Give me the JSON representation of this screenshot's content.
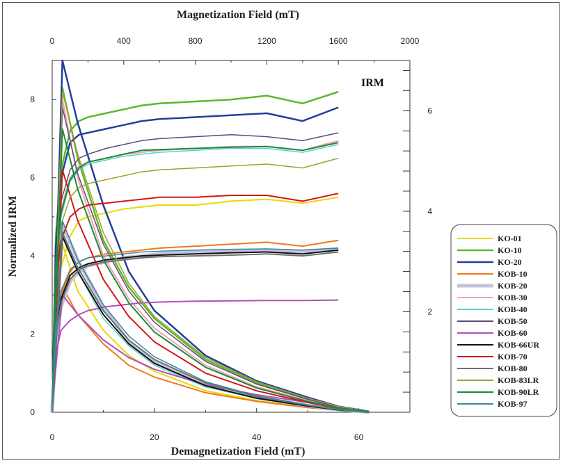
{
  "chart_data": {
    "type": "line",
    "title": "",
    "annotation": "IRM",
    "top_axis": {
      "label": "Magnetization Field (mT)",
      "range": [
        0,
        2000
      ],
      "ticks": [
        "0",
        "400",
        "800",
        "1200",
        "1600",
        "2000"
      ]
    },
    "bottom_axis": {
      "label": "Demagnetization Field (mT)",
      "range": [
        0,
        70
      ],
      "ticks": [
        "0",
        "20",
        "40",
        "60"
      ]
    },
    "left_axis": {
      "label": "Normalized IRM",
      "range": [
        0,
        9
      ],
      "ticks": [
        "0",
        "2",
        "4",
        "6",
        "8"
      ]
    },
    "right_axis": {
      "range": [
        0,
        7
      ],
      "ticks": [
        "2",
        "4",
        "6"
      ]
    },
    "legend_position": "bottom-right",
    "acquisition_x": [
      0,
      20,
      50,
      100,
      150,
      200,
      300,
      400,
      500,
      600,
      800,
      1000,
      1200,
      1400,
      1600
    ],
    "demag_x": [
      0,
      2,
      5,
      10,
      15,
      20,
      30,
      40,
      50,
      56,
      62
    ],
    "series": [
      {
        "name": "KO-01",
        "color": "#e8d800",
        "width": 2,
        "acq": [
          0,
          2.5,
          3.7,
          4.5,
          4.9,
          5.0,
          5.1,
          5.2,
          5.25,
          5.3,
          5.3,
          5.4,
          5.45,
          5.35,
          5.5
        ],
        "demag": [
          0.1,
          4.3,
          3.1,
          2.1,
          1.45,
          1.05,
          0.55,
          0.3,
          0.12,
          0.05,
          0.0
        ]
      },
      {
        "name": "KO-10",
        "color": "#5cb82a",
        "width": 2.5,
        "acq": [
          0,
          4.5,
          6.2,
          7.2,
          7.45,
          7.55,
          7.65,
          7.75,
          7.85,
          7.9,
          7.95,
          8.0,
          8.1,
          7.9,
          8.2
        ],
        "demag": [
          0.2,
          8.3,
          6.5,
          4.4,
          3.2,
          2.4,
          1.35,
          0.75,
          0.35,
          0.15,
          0.02
        ]
      },
      {
        "name": "KO-20",
        "color": "#22409a",
        "width": 2.5,
        "acq": [
          0,
          4.2,
          6.0,
          6.9,
          7.1,
          7.15,
          7.25,
          7.35,
          7.45,
          7.5,
          7.55,
          7.6,
          7.65,
          7.45,
          7.8
        ],
        "demag": [
          0.2,
          9.0,
          7.4,
          5.3,
          3.6,
          2.6,
          1.45,
          0.8,
          0.38,
          0.15,
          0.02
        ]
      },
      {
        "name": "KOB-10",
        "color": "#f07818",
        "width": 2,
        "acq": [
          0,
          2.1,
          3.0,
          3.6,
          3.85,
          3.95,
          4.05,
          4.1,
          4.15,
          4.2,
          4.25,
          4.3,
          4.35,
          4.25,
          4.4
        ],
        "demag": [
          0.1,
          3.2,
          2.5,
          1.75,
          1.2,
          0.9,
          0.5,
          0.28,
          0.12,
          0.05,
          0.0
        ]
      },
      {
        "name": "KOB-20",
        "color": "#c4c2dc",
        "width": 5,
        "acq": [
          0,
          1.8,
          2.7,
          3.35,
          3.6,
          3.75,
          3.85,
          3.95,
          4.0,
          4.05,
          4.1,
          4.12,
          4.15,
          4.12,
          4.18
        ],
        "demag": [
          0.1,
          4.8,
          3.9,
          2.7,
          1.8,
          1.3,
          0.7,
          0.38,
          0.17,
          0.07,
          0.0
        ]
      },
      {
        "name": "KOB-30",
        "color": "#f4a0b4",
        "width": 2,
        "acq": [
          0,
          3.8,
          5.2,
          6.0,
          6.3,
          6.4,
          6.5,
          6.6,
          6.65,
          6.7,
          6.75,
          6.8,
          6.8,
          6.7,
          6.95
        ],
        "demag": [
          0.2,
          8.0,
          6.0,
          4.0,
          2.9,
          2.15,
          1.2,
          0.65,
          0.3,
          0.12,
          0.02
        ]
      },
      {
        "name": "KOB-40",
        "color": "#5cd0d0",
        "width": 1.5,
        "acq": [
          0,
          3.6,
          5.0,
          5.9,
          6.2,
          6.35,
          6.45,
          6.55,
          6.6,
          6.65,
          6.7,
          6.75,
          6.75,
          6.65,
          6.85
        ],
        "demag": [
          0.2,
          4.6,
          3.6,
          2.4,
          1.7,
          1.2,
          0.65,
          0.35,
          0.15,
          0.06,
          0.0
        ]
      },
      {
        "name": "KOB-50",
        "color": "#604878",
        "width": 1.5,
        "acq": [
          0,
          3.9,
          5.4,
          6.2,
          6.5,
          6.6,
          6.75,
          6.85,
          6.95,
          7.0,
          7.05,
          7.1,
          7.05,
          6.95,
          7.15
        ],
        "demag": [
          0.2,
          7.8,
          6.1,
          4.3,
          3.1,
          2.3,
          1.3,
          0.72,
          0.33,
          0.13,
          0.02
        ]
      },
      {
        "name": "KOB-60",
        "color": "#b050b8",
        "width": 2,
        "acq": [
          0,
          1.5,
          2.1,
          2.35,
          2.5,
          2.6,
          2.7,
          2.75,
          2.8,
          2.82,
          2.84,
          2.85,
          2.86,
          2.86,
          2.87
        ],
        "demag": [
          0.1,
          3.0,
          2.5,
          1.85,
          1.4,
          1.1,
          0.7,
          0.45,
          0.25,
          0.12,
          0.02
        ]
      },
      {
        "name": "KOB-66UR",
        "color": "#111111",
        "width": 2,
        "acq": [
          0,
          2.0,
          2.9,
          3.5,
          3.7,
          3.8,
          3.9,
          3.95,
          4.0,
          4.02,
          4.05,
          4.08,
          4.1,
          4.05,
          4.15
        ],
        "demag": [
          0.1,
          4.5,
          3.6,
          2.5,
          1.75,
          1.25,
          0.68,
          0.36,
          0.16,
          0.06,
          0.0
        ]
      },
      {
        "name": "KOB-70",
        "color": "#d01818",
        "width": 2,
        "acq": [
          0,
          3.2,
          4.4,
          5.0,
          5.2,
          5.3,
          5.35,
          5.4,
          5.45,
          5.5,
          5.5,
          5.55,
          5.55,
          5.4,
          5.6
        ],
        "demag": [
          0.1,
          6.2,
          4.9,
          3.4,
          2.45,
          1.8,
          1.0,
          0.55,
          0.25,
          0.1,
          0.02
        ]
      },
      {
        "name": "KOB-80",
        "color": "#707070",
        "width": 2,
        "acq": [
          0,
          1.9,
          2.8,
          3.4,
          3.65,
          3.75,
          3.85,
          3.9,
          3.95,
          3.98,
          4.0,
          4.02,
          4.05,
          4.0,
          4.1
        ],
        "demag": [
          0.1,
          4.6,
          3.7,
          2.6,
          1.85,
          1.35,
          0.75,
          0.4,
          0.18,
          0.07,
          0.0
        ]
      },
      {
        "name": "KOB-83LR",
        "color": "#a0a030",
        "width": 1.5,
        "acq": [
          0,
          3.5,
          4.8,
          5.5,
          5.75,
          5.85,
          5.95,
          6.05,
          6.15,
          6.2,
          6.25,
          6.3,
          6.35,
          6.25,
          6.5
        ],
        "demag": [
          0.2,
          8.2,
          6.6,
          4.6,
          3.3,
          2.45,
          1.4,
          0.78,
          0.36,
          0.15,
          0.02
        ]
      },
      {
        "name": "KOB-90LR",
        "color": "#1a8a3a",
        "width": 2,
        "acq": [
          0,
          3.7,
          5.1,
          5.95,
          6.25,
          6.4,
          6.5,
          6.6,
          6.7,
          6.72,
          6.75,
          6.78,
          6.8,
          6.7,
          6.9
        ],
        "demag": [
          0.2,
          7.25,
          5.7,
          3.9,
          2.8,
          2.05,
          1.15,
          0.62,
          0.28,
          0.11,
          0.02
        ]
      },
      {
        "name": "KOB-97",
        "color": "#3a8898",
        "width": 1.5,
        "acq": [
          0,
          2.2,
          3.1,
          3.65,
          3.85,
          3.95,
          4.0,
          4.05,
          4.1,
          4.12,
          4.15,
          4.17,
          4.18,
          4.15,
          4.2
        ],
        "demag": [
          0.1,
          4.9,
          3.9,
          2.75,
          1.95,
          1.42,
          0.78,
          0.42,
          0.19,
          0.08,
          0.0
        ]
      }
    ]
  }
}
